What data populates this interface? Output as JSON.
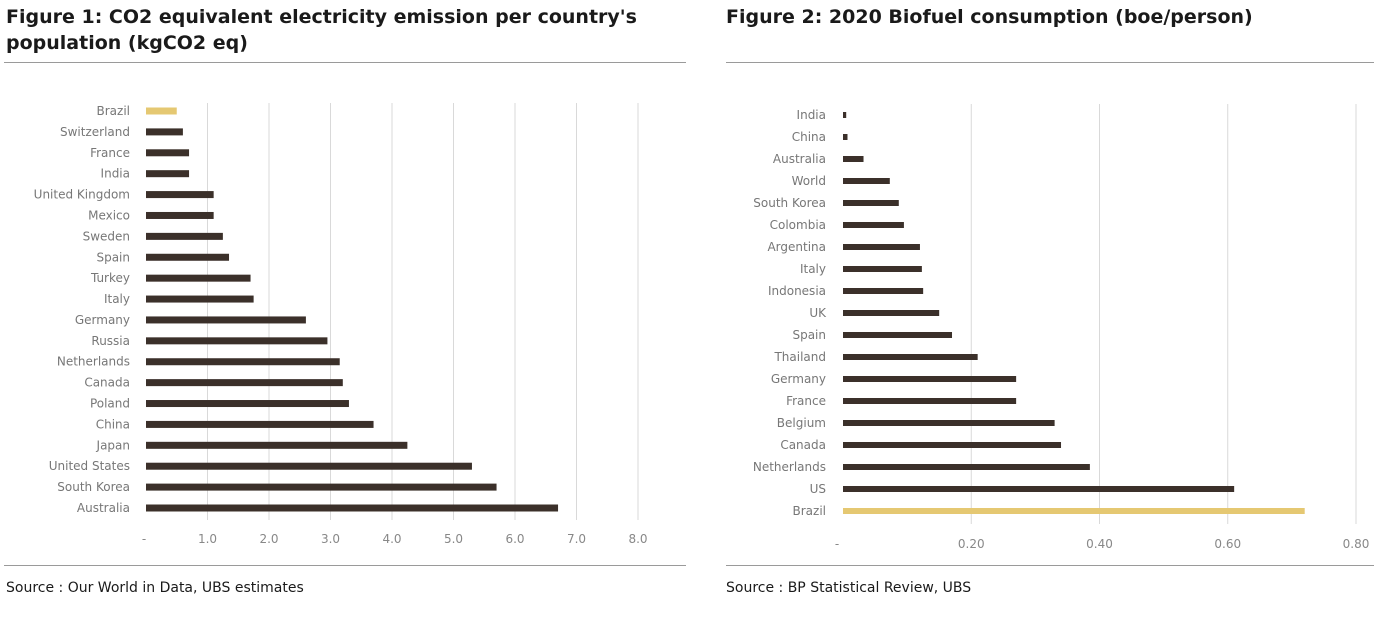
{
  "figures": [
    {
      "title": "Figure 1: CO2 equivalent electricity emission per country's population (kgCO2 eq)",
      "source": "Source : Our World in Data, UBS estimates",
      "chart_data": {
        "type": "bar",
        "orientation": "horizontal",
        "title": "Figure 1: CO2 equivalent electricity emission per country's population (kgCO2 eq)",
        "categories": [
          "Brazil",
          "Switzerland",
          "France",
          "India",
          "United Kingdom",
          "Mexico",
          "Sweden",
          "Spain",
          "Turkey",
          "Italy",
          "Germany",
          "Russia",
          "Netherlands",
          "Canada",
          "Poland",
          "China",
          "Japan",
          "United States",
          "South Korea",
          "Australia"
        ],
        "values": [
          0.5,
          0.6,
          0.7,
          0.7,
          1.1,
          1.1,
          1.25,
          1.35,
          1.7,
          1.75,
          2.6,
          2.95,
          3.15,
          3.2,
          3.3,
          3.7,
          4.25,
          5.3,
          5.7,
          6.7
        ],
        "highlight": "Brazil",
        "xlim": [
          0,
          8.0
        ],
        "xticks": [
          "-",
          "1.0",
          "2.0",
          "3.0",
          "4.0",
          "5.0",
          "6.0",
          "7.0",
          "8.0"
        ],
        "grid": true,
        "colors": {
          "bar": "#3b302a",
          "highlight": "#e5c872",
          "grid": "#d9d9d9"
        }
      }
    },
    {
      "title": "Figure 2: 2020 Biofuel consumption (boe/person)",
      "source": "Source : BP Statistical Review, UBS",
      "chart_data": {
        "type": "bar",
        "orientation": "horizontal",
        "title": "Figure 2: 2020 Biofuel consumption (boe/person)",
        "categories": [
          "India",
          "China",
          "Australia",
          "World",
          "South Korea",
          "Colombia",
          "Argentina",
          "Italy",
          "Indonesia",
          "UK",
          "Spain",
          "Thailand",
          "Germany",
          "France",
          "Belgium",
          "Canada",
          "Netherlands",
          "US",
          "Brazil"
        ],
        "values": [
          0.005,
          0.007,
          0.032,
          0.073,
          0.087,
          0.095,
          0.12,
          0.123,
          0.125,
          0.15,
          0.17,
          0.21,
          0.27,
          0.27,
          0.33,
          0.34,
          0.385,
          0.61,
          0.72
        ],
        "highlight": "Brazil",
        "xlim": [
          0,
          0.8
        ],
        "xticks": [
          "-",
          "0.20",
          "0.40",
          "0.60",
          "0.80"
        ],
        "grid": true,
        "colors": {
          "bar": "#3b302a",
          "highlight": "#e5c872",
          "grid": "#d9d9d9"
        }
      }
    }
  ]
}
